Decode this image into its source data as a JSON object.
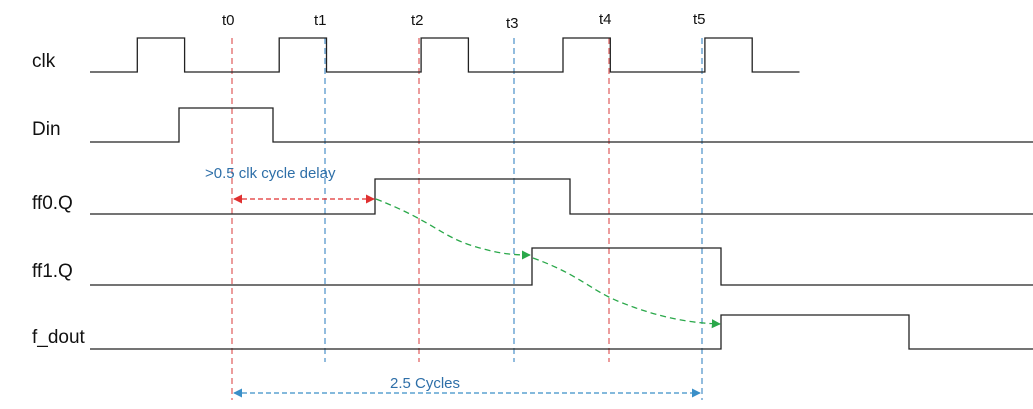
{
  "signals": [
    {
      "name": "clk",
      "level": [
        0,
        1,
        0,
        0,
        1,
        0,
        0,
        1,
        0,
        0,
        1,
        0,
        0,
        1,
        0
      ]
    },
    {
      "name": "Din"
    },
    {
      "name": "ff0.Q"
    },
    {
      "name": "ff1.Q"
    },
    {
      "name": "f_dout"
    }
  ],
  "time_markers": [
    {
      "label": "t0",
      "color": "#e05a5a"
    },
    {
      "label": "t1",
      "color": "#4a90c8"
    },
    {
      "label": "t2",
      "color": "#e05a5a"
    },
    {
      "label": "t3",
      "color": "#4a90c8"
    },
    {
      "label": "t4",
      "color": "#e05a5a"
    },
    {
      "label": "t5",
      "color": "#4a90c8"
    }
  ],
  "annotations": {
    "delay_label": ">0.5 clk cycle delay",
    "delay_color": "#e03030",
    "cycles_label": "2.5 Cycles",
    "cycles_color": "#3a8fc8",
    "text_color": "#2e6fa8",
    "propagation_color": "#2aa84a"
  }
}
